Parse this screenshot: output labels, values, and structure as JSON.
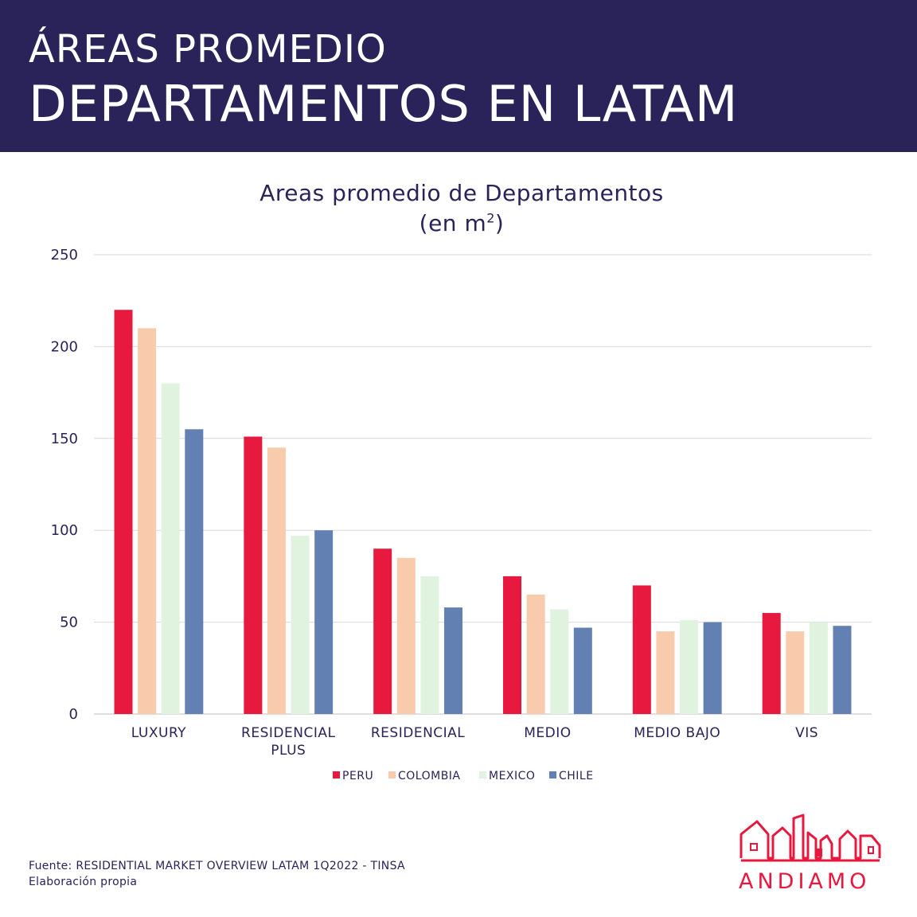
{
  "header": {
    "line1": "ÁREAS PROMEDIO",
    "line2": "DEPARTAMENTOS EN LATAM"
  },
  "chart_title": {
    "line1": "Areas promedio de Departamentos",
    "line2_prefix": "(en m",
    "line2_sup": "2",
    "line2_suffix": ")"
  },
  "footer": {
    "line1": "Fuente: RESIDENTIAL MARKET OVERVIEW LATAM 1Q2022 - TINSA",
    "line2": "Elaboración propia"
  },
  "brand": {
    "name": "ANDIAMO",
    "color": "#e8173e"
  },
  "chart_data": {
    "type": "bar",
    "title": "Areas promedio de Departamentos (en m2)",
    "xlabel": "",
    "ylabel": "",
    "ylim": [
      0,
      250
    ],
    "yticks": [
      0,
      50,
      100,
      150,
      200,
      250
    ],
    "grid": true,
    "legend": "bottom",
    "categories": [
      [
        "LUXURY"
      ],
      [
        "RESIDENCIAL",
        "PLUS"
      ],
      [
        "RESIDENCIAL"
      ],
      [
        "MEDIO"
      ],
      [
        "MEDIO BAJO"
      ],
      [
        "VIS"
      ]
    ],
    "series": [
      {
        "name": "PERU",
        "color": "#e8193f",
        "values": [
          220,
          151,
          90,
          75,
          70,
          55
        ]
      },
      {
        "name": "COLOMBIA",
        "color": "#f7cbab",
        "values": [
          210,
          145,
          85,
          65,
          45,
          45
        ]
      },
      {
        "name": "MEXICO",
        "color": "#dff3df",
        "values": [
          180,
          97,
          75,
          57,
          51,
          50
        ]
      },
      {
        "name": "CHILE",
        "color": "#6380b3",
        "values": [
          155,
          100,
          58,
          47,
          50,
          48
        ]
      }
    ]
  }
}
